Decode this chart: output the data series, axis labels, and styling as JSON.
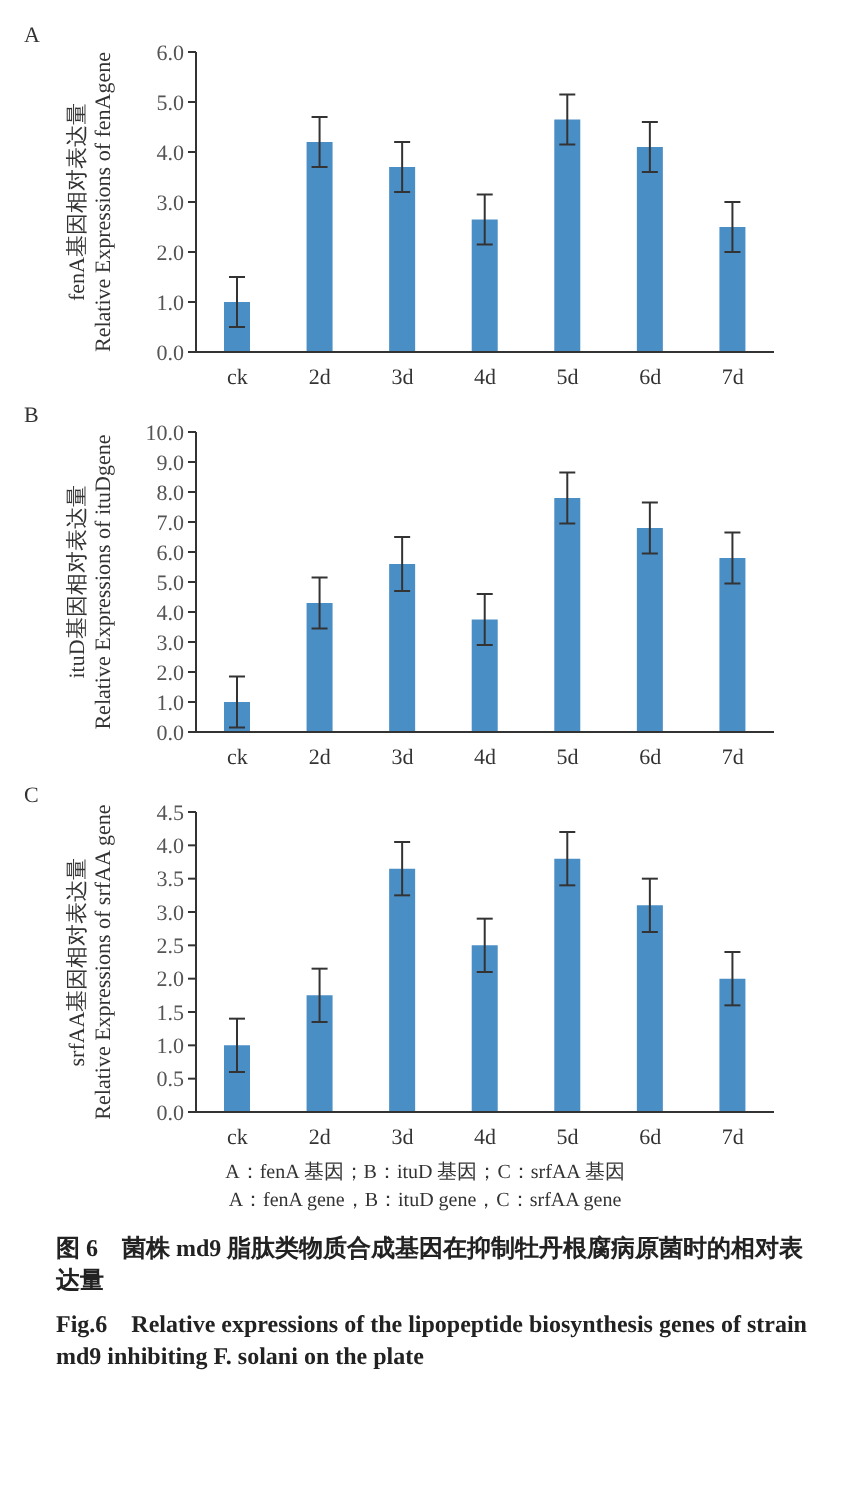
{
  "chart_data": [
    {
      "type": "bar",
      "title": "A",
      "ylabel": "fenA基因相对表达量\nRelative Expressions of fenAgene",
      "categories": [
        "ck",
        "2d",
        "3d",
        "4d",
        "5d",
        "6d",
        "7d"
      ],
      "color": "#4a8ec6",
      "values": [
        1.0,
        4.2,
        3.7,
        2.65,
        4.65,
        4.1,
        2.5
      ],
      "errors": [
        0.5,
        0.5,
        0.5,
        0.5,
        0.5,
        0.5,
        0.5
      ],
      "ylim": [
        0,
        6
      ],
      "yticks": [
        {
          "value": 0,
          "label": "0.0"
        },
        {
          "value": 1,
          "label": "1.0"
        },
        {
          "value": 2,
          "label": "2.0"
        },
        {
          "value": 3,
          "label": "3.0"
        },
        {
          "value": 4,
          "label": "4.0"
        },
        {
          "value": 5,
          "label": "5.0"
        },
        {
          "value": 6,
          "label": "6.0"
        }
      ],
      "grid": false,
      "legend": false
    },
    {
      "type": "bar",
      "title": "B",
      "ylabel": "ituD基因相对表达量\nRelative Expressions of ituDgene",
      "categories": [
        "ck",
        "2d",
        "3d",
        "4d",
        "5d",
        "6d",
        "7d"
      ],
      "color": "#4a8ec6",
      "values": [
        1.0,
        4.3,
        5.6,
        3.75,
        7.8,
        6.8,
        5.8
      ],
      "errors": [
        0.85,
        0.85,
        0.9,
        0.85,
        0.85,
        0.85,
        0.85
      ],
      "ylim": [
        0,
        10
      ],
      "yticks": [
        {
          "value": 0,
          "label": "0.0"
        },
        {
          "value": 1,
          "label": "1.0"
        },
        {
          "value": 2,
          "label": "2.0"
        },
        {
          "value": 3,
          "label": "3.0"
        },
        {
          "value": 4,
          "label": "4.0"
        },
        {
          "value": 5,
          "label": "5.0"
        },
        {
          "value": 6,
          "label": "6.0"
        },
        {
          "value": 7,
          "label": "7.0"
        },
        {
          "value": 8,
          "label": "8.0"
        },
        {
          "value": 9,
          "label": "9.0"
        },
        {
          "value": 10,
          "label": "10.0"
        }
      ],
      "grid": false,
      "legend": false
    },
    {
      "type": "bar",
      "title": "C",
      "ylabel": "srfAA基因相对表达量\nRelative Expressions of srfAA gene",
      "categories": [
        "ck",
        "2d",
        "3d",
        "4d",
        "5d",
        "6d",
        "7d"
      ],
      "color": "#4a8ec6",
      "values": [
        1.0,
        1.75,
        3.65,
        2.5,
        3.8,
        3.1,
        2.0
      ],
      "errors": [
        0.4,
        0.4,
        0.4,
        0.4,
        0.4,
        0.4,
        0.4
      ],
      "ylim": [
        0,
        4.5
      ],
      "yticks": [
        {
          "value": 0,
          "label": "0.0"
        },
        {
          "value": 0.5,
          "label": "0.5"
        },
        {
          "value": 1,
          "label": "1.0"
        },
        {
          "value": 1.5,
          "label": "1.5"
        },
        {
          "value": 2,
          "label": "2.0"
        },
        {
          "value": 2.5,
          "label": "2.5"
        },
        {
          "value": 3,
          "label": "3.0"
        },
        {
          "value": 3.5,
          "label": "3.5"
        },
        {
          "value": 4,
          "label": "4.0"
        },
        {
          "value": 4.5,
          "label": "4.5"
        }
      ],
      "grid": false,
      "legend": false,
      "annotations": [
        "A：fenA 基因；B：ituD 基因；C：srfAA 基因",
        "A：fenA gene，B：ituD gene，C：srfAA gene",
        "图 6　菌株 md9 脂肽类物质合成基因在抑制牡丹根腐病原菌时的相对表达量",
        "Fig.6　Relative expressions of the lipopeptide biosynthesis genes of strain md9 inhibiting F. solani on the plate"
      ]
    }
  ]
}
